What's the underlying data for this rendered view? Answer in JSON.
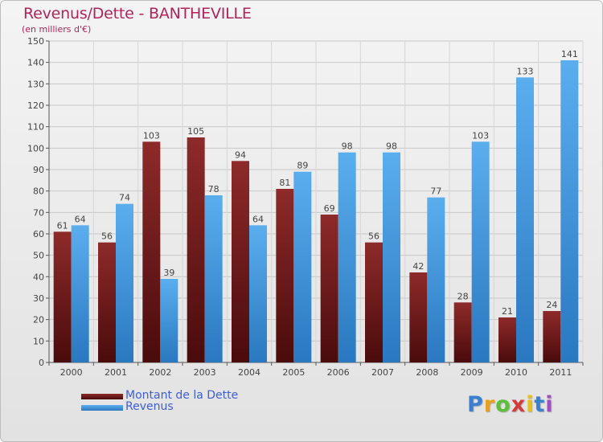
{
  "header": {
    "title": "Revenus/Dette - BANTHEVILLE",
    "subtitle": "(en milliers d'€)"
  },
  "chart_data": {
    "type": "bar",
    "title": "Revenus/Dette - BANTHEVILLE",
    "subtitle": "(en milliers d'€)",
    "xlabel": "",
    "ylabel": "",
    "categories": [
      "2000",
      "2001",
      "2002",
      "2003",
      "2004",
      "2005",
      "2006",
      "2007",
      "2008",
      "2009",
      "2010",
      "2011"
    ],
    "series": [
      {
        "name": "Montant de la Dette",
        "color": "#7a1a1a",
        "values": [
          61,
          56,
          103,
          105,
          94,
          81,
          69,
          56,
          42,
          28,
          21,
          24
        ]
      },
      {
        "name": "Revenus",
        "color": "#4a9fe0",
        "values": [
          64,
          74,
          39,
          78,
          64,
          89,
          98,
          98,
          77,
          103,
          133,
          141
        ]
      }
    ],
    "ylim": [
      0,
      150
    ],
    "ytick_step": 10,
    "grid": true,
    "legend_position": "bottom-left"
  },
  "brand": {
    "letters": [
      "P",
      "r",
      "o",
      "x",
      "i",
      "t",
      "i"
    ],
    "colors": [
      "#3a7fd0",
      "#e8a020",
      "#5bbf3a",
      "#d63a3a",
      "#e8c020",
      "#3a7fd0",
      "#a04fc0"
    ]
  }
}
